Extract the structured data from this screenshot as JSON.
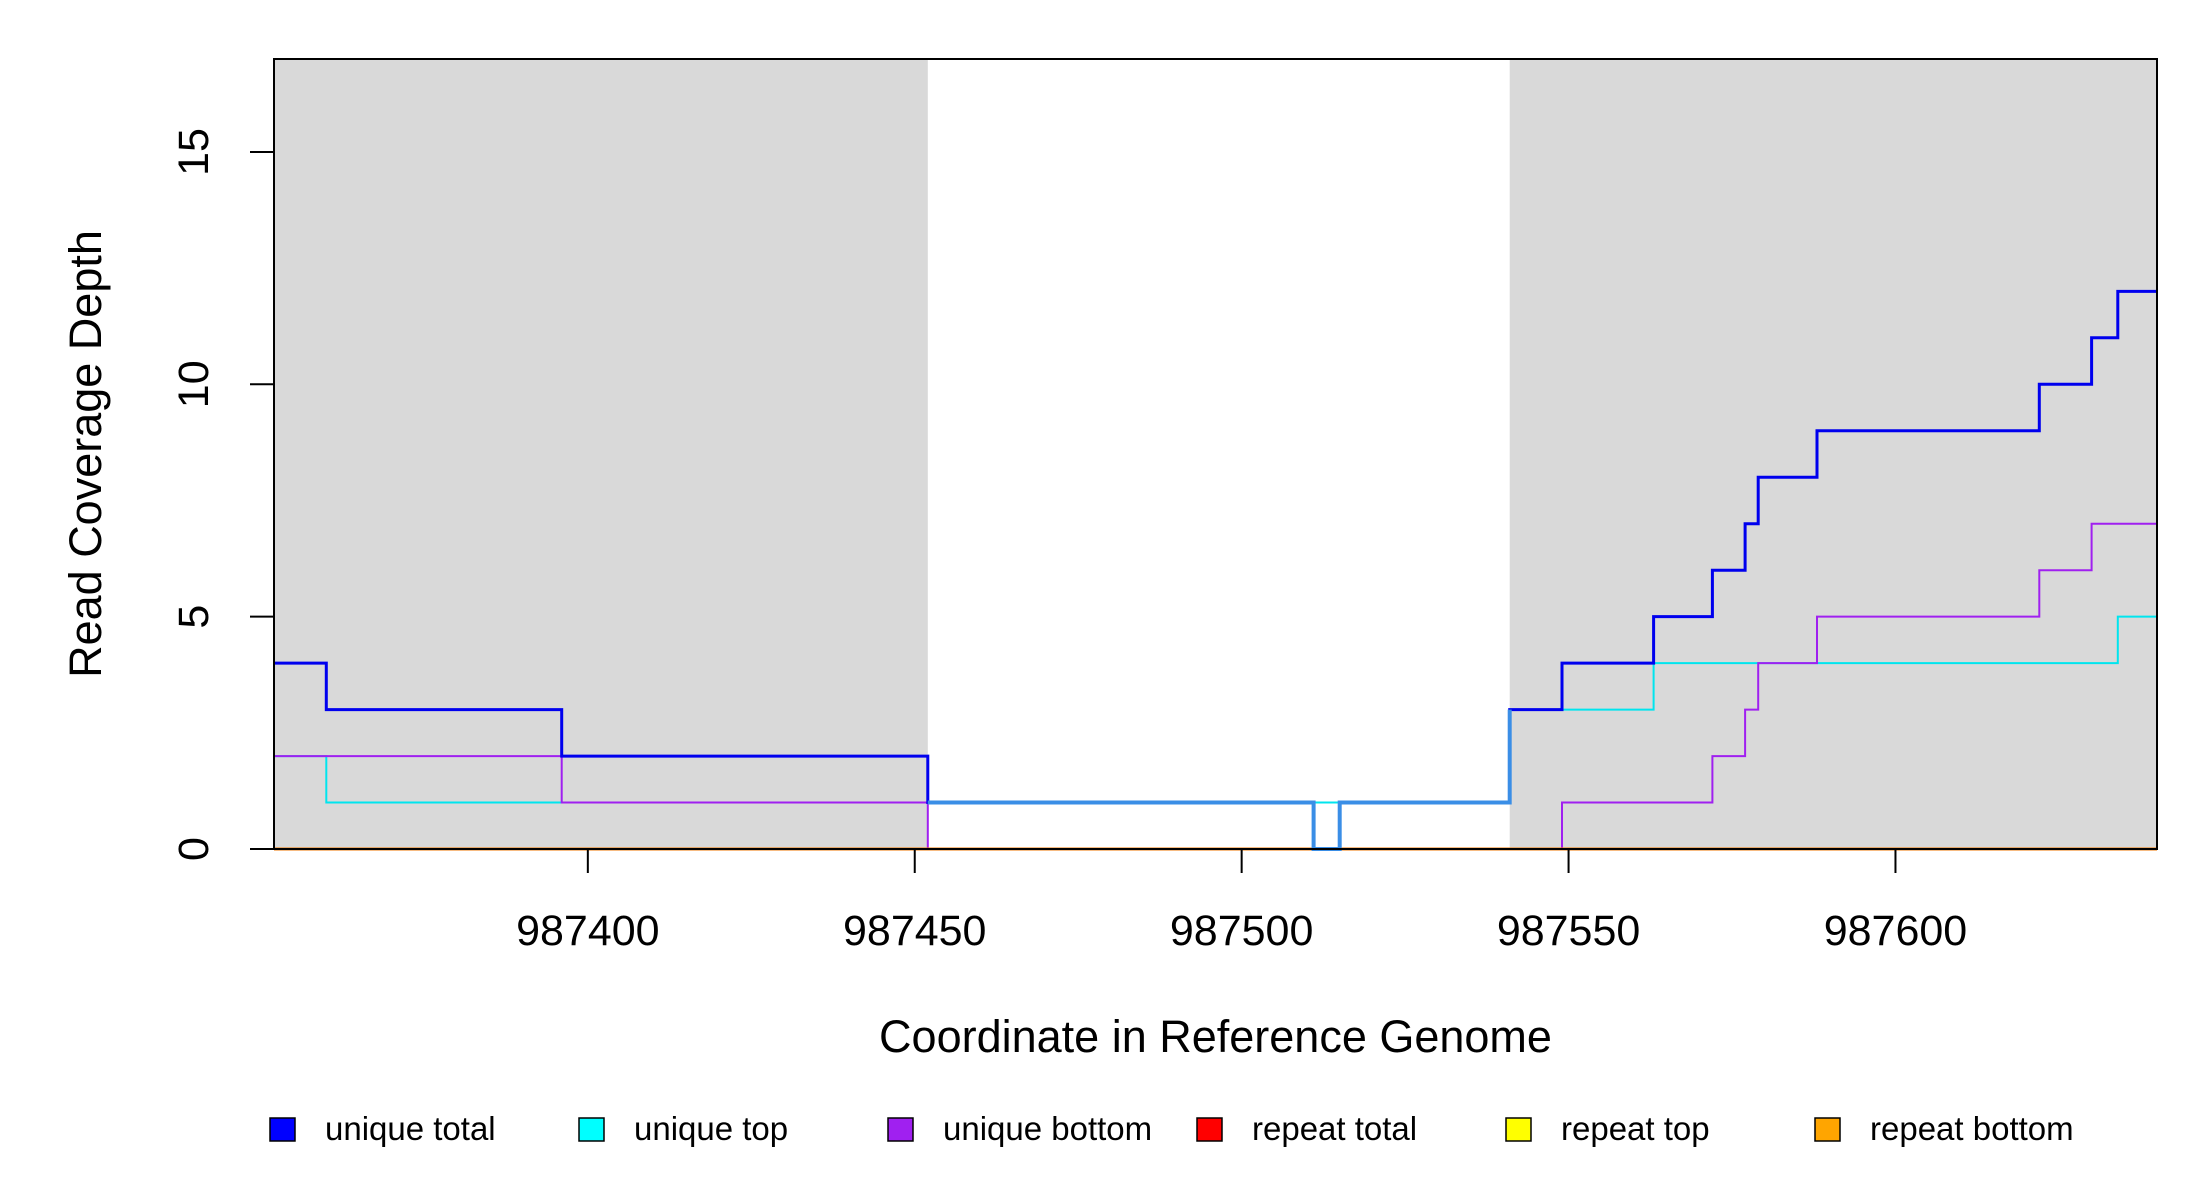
{
  "chart_data": {
    "type": "line",
    "xlabel": "Coordinate in Reference Genome",
    "ylabel": "Read Coverage Depth",
    "xlim": [
      987352,
      987640
    ],
    "ylim": [
      0,
      17
    ],
    "x_ticks": [
      987400,
      987450,
      987500,
      987550,
      987600
    ],
    "x_tick_labels": [
      "987400",
      "987450",
      "987500",
      "987550",
      "987600"
    ],
    "y_ticks": [
      0,
      5,
      10,
      15
    ],
    "y_tick_labels": [
      "0",
      "5",
      "10",
      "15"
    ],
    "grid": false,
    "shaded_regions": [
      {
        "x0": 987352,
        "x1": 987452,
        "color": "#d9d9d9"
      },
      {
        "x0": 987541,
        "x1": 987640,
        "color": "#d9d9d9"
      }
    ],
    "legend": {
      "placement": "bottom",
      "entries": [
        {
          "label": "unique total",
          "color": "#0000ff"
        },
        {
          "label": "unique top",
          "color": "#00ffff"
        },
        {
          "label": "unique bottom",
          "color": "#a020f0"
        },
        {
          "label": "repeat total",
          "color": "#ff0000"
        },
        {
          "label": "repeat top",
          "color": "#ffff00"
        },
        {
          "label": "repeat bottom",
          "color": "#ffa500"
        }
      ]
    },
    "series": [
      {
        "key": "unique_top",
        "color": "#00e5ee",
        "width": 2,
        "x": [
          987352,
          987360,
          987396,
          987452,
          987541,
          987563,
          987634,
          987640
        ],
        "y": [
          2,
          1,
          1,
          1,
          3,
          4,
          5,
          5
        ]
      },
      {
        "key": "unique_bottom",
        "color": "#a020f0",
        "width": 2,
        "x": [
          987352,
          987396,
          987452,
          987549,
          987572,
          987577,
          987579,
          987588,
          987622,
          987630,
          987640
        ],
        "y": [
          2,
          1,
          0,
          1,
          2,
          3,
          4,
          5,
          6,
          7,
          7
        ]
      },
      {
        "key": "repeat_bottom",
        "color": "#ee7600",
        "width": 3,
        "x": [
          987352,
          987640
        ],
        "y": [
          0,
          0
        ]
      },
      {
        "key": "unique_total",
        "color": "#0000ee",
        "width": 3,
        "x": [
          987352,
          987360,
          987396,
          987452,
          987511,
          987515,
          987541,
          987549,
          987563,
          987572,
          987577,
          987579,
          987588,
          987622,
          987630,
          987634,
          987640
        ],
        "y": [
          4,
          3,
          2,
          1,
          0,
          1,
          3,
          4,
          5,
          6,
          7,
          8,
          9,
          10,
          11,
          12,
          12
        ]
      }
    ],
    "overlay_segment": {
      "color": "#3a8ee6",
      "width": 4,
      "x": [
        987452,
        987511,
        987515,
        987541
      ],
      "y": [
        1,
        0,
        1,
        3
      ]
    }
  }
}
